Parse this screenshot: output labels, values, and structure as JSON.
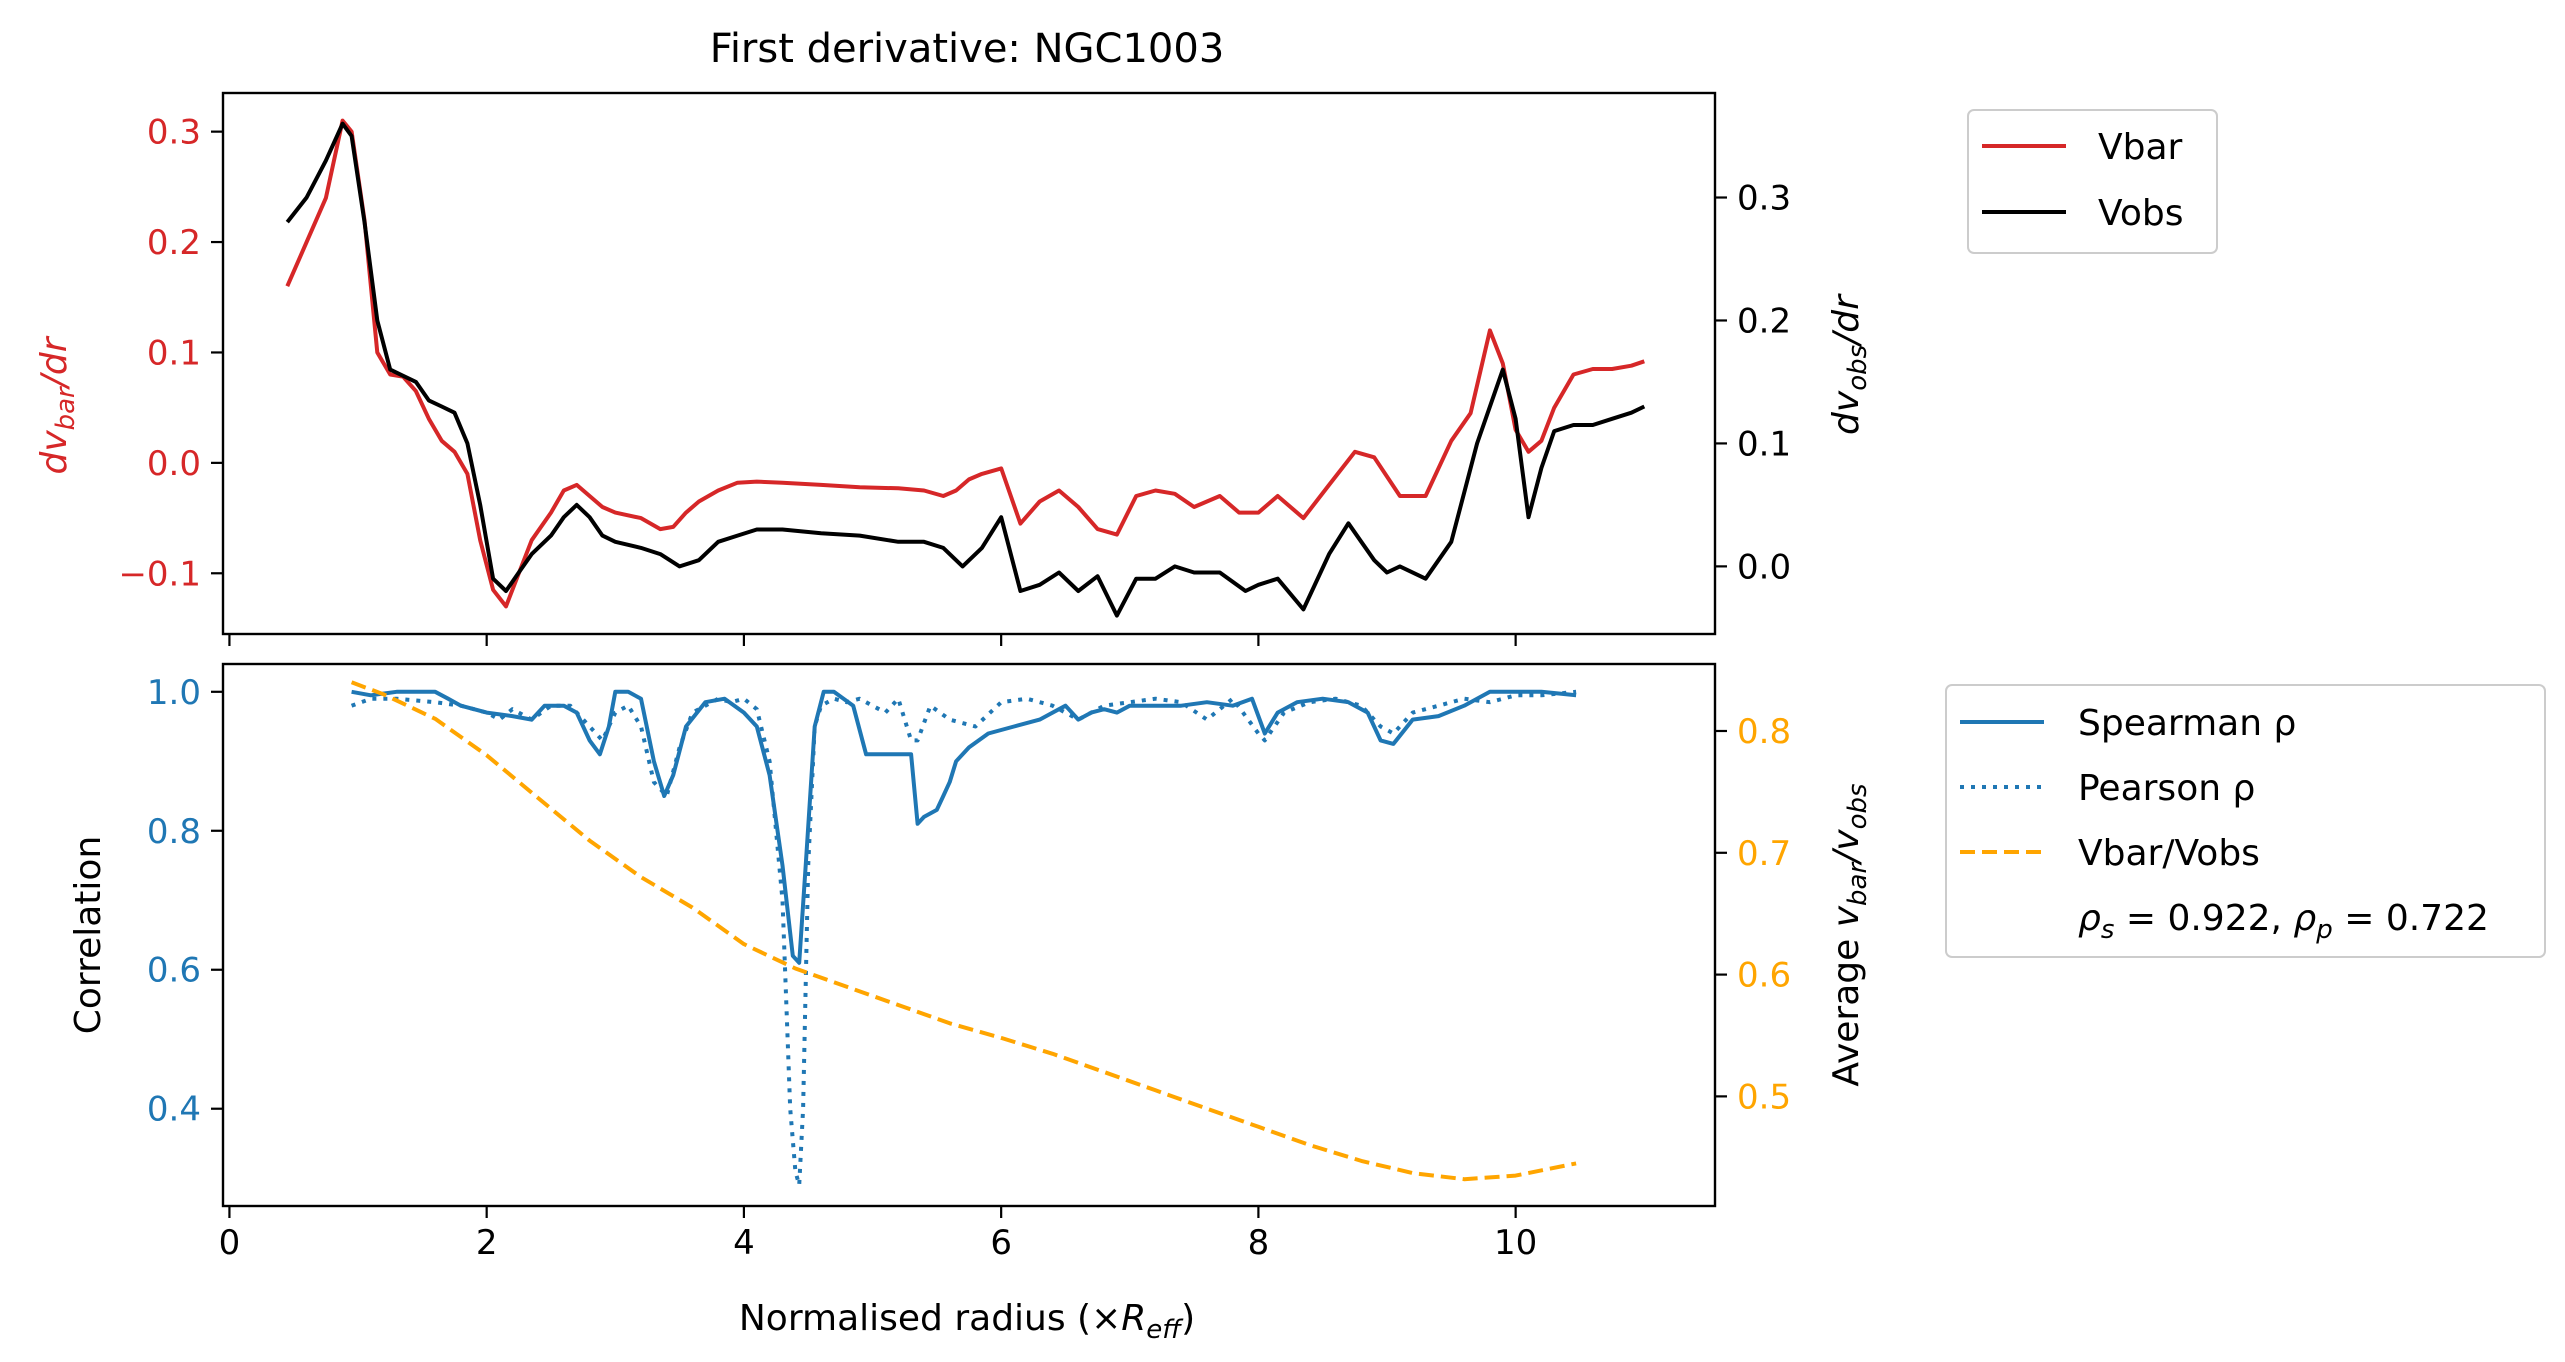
{
  "chart_data": [
    {
      "type": "line",
      "title": "First derivative: NGC1003",
      "ylabel_left": "dv_bar/dr",
      "ylabel_right": "dv_obs/dr",
      "ylim_left": [
        -0.155,
        0.335
      ],
      "ylim_right": [
        -0.055,
        0.385
      ],
      "xlim": [
        -0.05,
        11.55
      ],
      "x_ticks": [
        0,
        2,
        4,
        6,
        8,
        10
      ],
      "y_ticks_left": [
        "0.3",
        "0.2",
        "0.1",
        "0.0",
        "−0.1"
      ],
      "y_ticks_right": [
        "0.3",
        "0.2",
        "0.1",
        "0.0"
      ],
      "left_axis_color": "#d62728",
      "legend": {
        "placement": "outside-right-top",
        "entries": [
          "Vbar",
          "Vobs"
        ]
      },
      "series": [
        {
          "name": "Vbar",
          "axis": "left",
          "color": "#d62728",
          "style": "solid",
          "x": [
            0.45,
            0.6,
            0.75,
            0.88,
            0.95,
            1.05,
            1.15,
            1.25,
            1.35,
            1.45,
            1.55,
            1.65,
            1.75,
            1.85,
            1.95,
            2.05,
            2.15,
            2.25,
            2.35,
            2.5,
            2.6,
            2.7,
            2.8,
            2.9,
            3.0,
            3.2,
            3.35,
            3.45,
            3.55,
            3.65,
            3.8,
            3.95,
            4.1,
            4.3,
            4.6,
            4.9,
            5.2,
            5.4,
            5.55,
            5.65,
            5.75,
            5.85,
            6.0,
            6.15,
            6.3,
            6.45,
            6.6,
            6.75,
            6.9,
            7.05,
            7.2,
            7.35,
            7.5,
            7.7,
            7.85,
            8.0,
            8.15,
            8.35,
            8.55,
            8.75,
            8.9,
            9.1,
            9.3,
            9.5,
            9.65,
            9.8,
            9.9,
            10.0,
            10.1,
            10.2,
            10.3,
            10.45,
            10.6,
            10.75,
            10.9,
            11.0
          ],
          "y": [
            0.16,
            0.2,
            0.24,
            0.31,
            0.3,
            0.22,
            0.1,
            0.08,
            0.078,
            0.065,
            0.04,
            0.02,
            0.01,
            -0.01,
            -0.07,
            -0.115,
            -0.13,
            -0.1,
            -0.07,
            -0.045,
            -0.025,
            -0.02,
            -0.03,
            -0.04,
            -0.045,
            -0.05,
            -0.06,
            -0.058,
            -0.045,
            -0.035,
            -0.025,
            -0.018,
            -0.017,
            -0.018,
            -0.02,
            -0.022,
            -0.023,
            -0.025,
            -0.03,
            -0.025,
            -0.015,
            -0.01,
            -0.005,
            -0.055,
            -0.035,
            -0.025,
            -0.04,
            -0.06,
            -0.065,
            -0.03,
            -0.025,
            -0.028,
            -0.04,
            -0.03,
            -0.045,
            -0.045,
            -0.03,
            -0.05,
            -0.02,
            0.01,
            0.005,
            -0.03,
            -0.03,
            0.02,
            0.045,
            0.12,
            0.09,
            0.03,
            0.01,
            0.02,
            0.05,
            0.08,
            0.085,
            0.085,
            0.088,
            0.092
          ]
        },
        {
          "name": "Vobs",
          "axis": "right",
          "color": "#000000",
          "style": "solid",
          "x": [
            0.45,
            0.6,
            0.75,
            0.88,
            0.95,
            1.05,
            1.15,
            1.25,
            1.35,
            1.45,
            1.55,
            1.65,
            1.75,
            1.85,
            1.95,
            2.05,
            2.15,
            2.25,
            2.35,
            2.5,
            2.6,
            2.7,
            2.8,
            2.9,
            3.0,
            3.2,
            3.35,
            3.5,
            3.65,
            3.8,
            3.95,
            4.1,
            4.3,
            4.6,
            4.9,
            5.2,
            5.4,
            5.55,
            5.7,
            5.85,
            6.0,
            6.15,
            6.3,
            6.45,
            6.6,
            6.75,
            6.9,
            7.05,
            7.2,
            7.35,
            7.5,
            7.7,
            7.9,
            8.0,
            8.15,
            8.35,
            8.55,
            8.7,
            8.8,
            8.9,
            9.0,
            9.1,
            9.3,
            9.5,
            9.7,
            9.9,
            10.0,
            10.1,
            10.2,
            10.3,
            10.45,
            10.6,
            10.75,
            10.9,
            11.0
          ],
          "y": [
            0.28,
            0.3,
            0.33,
            0.36,
            0.35,
            0.28,
            0.2,
            0.16,
            0.155,
            0.15,
            0.135,
            0.13,
            0.125,
            0.1,
            0.05,
            -0.01,
            -0.02,
            -0.005,
            0.01,
            0.025,
            0.04,
            0.05,
            0.04,
            0.025,
            0.02,
            0.015,
            0.01,
            0.0,
            0.005,
            0.02,
            0.025,
            0.03,
            0.03,
            0.027,
            0.025,
            0.02,
            0.02,
            0.015,
            0.0,
            0.015,
            0.04,
            -0.02,
            -0.015,
            -0.005,
            -0.02,
            -0.008,
            -0.04,
            -0.01,
            -0.01,
            0.0,
            -0.005,
            -0.005,
            -0.02,
            -0.015,
            -0.01,
            -0.035,
            0.01,
            0.035,
            0.02,
            0.005,
            -0.005,
            0.0,
            -0.01,
            0.02,
            0.1,
            0.16,
            0.12,
            0.04,
            0.08,
            0.11,
            0.115,
            0.115,
            0.12,
            0.125,
            0.13
          ]
        }
      ]
    },
    {
      "type": "line",
      "title": "",
      "xlabel": "Normalised radius (×R_eff)",
      "ylabel_left": "Correlation",
      "ylabel_right": "Average v_bar/v_obs",
      "ylim_left": [
        0.26,
        1.04
      ],
      "ylim_right": [
        0.41,
        0.855
      ],
      "xlim": [
        -0.05,
        11.55
      ],
      "x_ticks": [
        0,
        2,
        4,
        6,
        8,
        10
      ],
      "y_ticks_left": [
        "1.0",
        "0.8",
        "0.6",
        "0.4"
      ],
      "y_ticks_right": [
        "0.8",
        "0.7",
        "0.6",
        "0.5"
      ],
      "left_axis_color": "#1f77b4",
      "right_axis_color": "#ffa500",
      "legend": {
        "placement": "outside-right",
        "entries": [
          "Spearman ρ",
          "Pearson ρ",
          "Vbar/Vobs"
        ],
        "annotation": "ρ_s = 0.922, ρ_p = 0.722"
      },
      "series": [
        {
          "name": "Spearman ρ",
          "axis": "left",
          "color": "#1f77b4",
          "style": "solid",
          "x": [
            0.95,
            1.1,
            1.3,
            1.6,
            1.7,
            1.8,
            2.0,
            2.2,
            2.35,
            2.45,
            2.5,
            2.6,
            2.7,
            2.8,
            2.88,
            2.95,
            3.0,
            3.1,
            3.2,
            3.3,
            3.38,
            3.45,
            3.55,
            3.7,
            3.85,
            4.0,
            4.1,
            4.2,
            4.3,
            4.38,
            4.43,
            4.48,
            4.55,
            4.62,
            4.7,
            4.85,
            4.95,
            5.1,
            5.3,
            5.35,
            5.4,
            5.5,
            5.55,
            5.6,
            5.65,
            5.75,
            5.9,
            6.1,
            6.3,
            6.4,
            6.5,
            6.6,
            6.7,
            6.8,
            6.9,
            7.0,
            7.2,
            7.4,
            7.6,
            7.8,
            7.95,
            8.05,
            8.15,
            8.3,
            8.5,
            8.7,
            8.85,
            8.95,
            9.05,
            9.2,
            9.4,
            9.6,
            9.8,
            10.0,
            10.2,
            10.47
          ],
          "y": [
            1.0,
            0.995,
            1.0,
            1.0,
            0.99,
            0.98,
            0.97,
            0.965,
            0.96,
            0.98,
            0.98,
            0.98,
            0.97,
            0.93,
            0.91,
            0.95,
            1.0,
            1.0,
            0.99,
            0.9,
            0.85,
            0.88,
            0.95,
            0.985,
            0.99,
            0.97,
            0.95,
            0.88,
            0.75,
            0.62,
            0.61,
            0.75,
            0.95,
            1.0,
            1.0,
            0.98,
            0.91,
            0.91,
            0.91,
            0.81,
            0.82,
            0.83,
            0.85,
            0.87,
            0.9,
            0.92,
            0.94,
            0.95,
            0.96,
            0.97,
            0.98,
            0.96,
            0.97,
            0.975,
            0.97,
            0.98,
            0.98,
            0.98,
            0.985,
            0.98,
            0.99,
            0.94,
            0.97,
            0.985,
            0.99,
            0.985,
            0.97,
            0.93,
            0.925,
            0.96,
            0.965,
            0.98,
            1.0,
            1.0,
            1.0,
            0.995
          ]
        },
        {
          "name": "Pearson ρ",
          "axis": "left",
          "color": "#1f77b4",
          "style": "dotted",
          "x": [
            0.95,
            1.1,
            1.3,
            1.6,
            1.8,
            2.0,
            2.1,
            2.2,
            2.35,
            2.5,
            2.65,
            2.8,
            2.9,
            3.0,
            3.1,
            3.2,
            3.3,
            3.4,
            3.5,
            3.6,
            3.7,
            3.8,
            3.9,
            4.0,
            4.1,
            4.2,
            4.3,
            4.36,
            4.4,
            4.43,
            4.46,
            4.5,
            4.55,
            4.6,
            4.7,
            4.8,
            4.9,
            5.0,
            5.1,
            5.2,
            5.3,
            5.35,
            5.45,
            5.6,
            5.8,
            6.0,
            6.2,
            6.4,
            6.6,
            6.8,
            7.0,
            7.2,
            7.4,
            7.6,
            7.8,
            8.0,
            8.05,
            8.2,
            8.4,
            8.6,
            8.8,
            8.95,
            9.05,
            9.2,
            9.4,
            9.6,
            9.8,
            10.0,
            10.2,
            10.47
          ],
          "y": [
            0.98,
            0.99,
            0.99,
            0.985,
            0.98,
            0.97,
            0.96,
            0.975,
            0.96,
            0.98,
            0.98,
            0.95,
            0.93,
            0.97,
            0.98,
            0.95,
            0.87,
            0.85,
            0.92,
            0.97,
            0.98,
            0.99,
            0.985,
            0.99,
            0.975,
            0.9,
            0.7,
            0.4,
            0.31,
            0.29,
            0.4,
            0.75,
            0.95,
            0.98,
            0.99,
            0.985,
            0.99,
            0.98,
            0.97,
            0.99,
            0.93,
            0.93,
            0.98,
            0.96,
            0.95,
            0.985,
            0.99,
            0.98,
            0.96,
            0.98,
            0.985,
            0.99,
            0.985,
            0.96,
            0.99,
            0.94,
            0.93,
            0.97,
            0.985,
            0.99,
            0.98,
            0.95,
            0.94,
            0.97,
            0.98,
            0.99,
            0.985,
            0.995,
            0.995,
            1.0
          ]
        },
        {
          "name": "Vbar/Vobs",
          "axis": "right",
          "color": "#ffa500",
          "style": "dashed",
          "x": [
            0.95,
            1.2,
            1.6,
            2.0,
            2.4,
            2.8,
            3.2,
            3.6,
            4.0,
            4.4,
            4.8,
            5.2,
            5.6,
            6.0,
            6.4,
            6.8,
            7.2,
            7.6,
            8.0,
            8.4,
            8.8,
            9.2,
            9.6,
            10.0,
            10.47
          ],
          "y": [
            0.84,
            0.83,
            0.81,
            0.78,
            0.745,
            0.71,
            0.68,
            0.655,
            0.625,
            0.605,
            0.59,
            0.575,
            0.56,
            0.548,
            0.535,
            0.52,
            0.505,
            0.49,
            0.475,
            0.46,
            0.447,
            0.437,
            0.432,
            0.435,
            0.445
          ]
        }
      ]
    }
  ]
}
